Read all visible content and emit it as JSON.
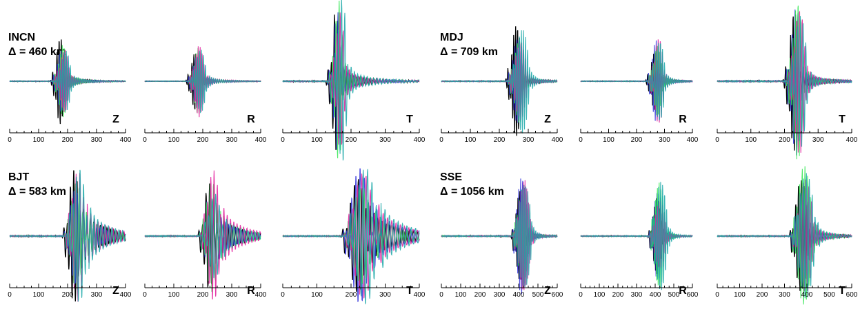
{
  "chart_data": {
    "type": "line",
    "x_unit_hidden": "s",
    "trace_colors": [
      "#000000",
      "#2a2ad8",
      "#30e650",
      "#e01a9a",
      "#19a7a7"
    ],
    "stations": [
      {
        "name": "INCN",
        "distance": "Δ = 460 km",
        "xlim": [
          0,
          400
        ],
        "xticks": [
          "0",
          "100",
          "200",
          "300",
          "400"
        ],
        "panels": [
          {
            "component": "Z",
            "arrival": 160,
            "duration": 45,
            "amp": 0.55,
            "coda": 0.08,
            "period": 7
          },
          {
            "component": "R",
            "arrival": 160,
            "duration": 45,
            "amp": 0.45,
            "coda": 0.08,
            "period": 7
          },
          {
            "component": "T",
            "arrival": 145,
            "duration": 35,
            "amp": 1.0,
            "coda": 0.1,
            "period": 9
          }
        ]
      },
      {
        "name": "MDJ",
        "distance": "Δ = 709 km",
        "xlim": [
          0,
          400
        ],
        "xticks": [
          "0",
          "100",
          "200",
          "300",
          "400"
        ],
        "panels": [
          {
            "component": "Z",
            "arrival": 240,
            "duration": 55,
            "amp": 0.7,
            "coda": 0.05,
            "period": 7
          },
          {
            "component": "R",
            "arrival": 250,
            "duration": 45,
            "amp": 0.55,
            "coda": 0.05,
            "period": 7
          },
          {
            "component": "T",
            "arrival": 215,
            "duration": 45,
            "amp": 1.0,
            "coda": 0.06,
            "period": 8
          }
        ]
      },
      {
        "name": "BJT",
        "distance": "Δ = 583 km",
        "xlim": [
          0,
          400
        ],
        "xticks": [
          "0",
          "100",
          "200",
          "300",
          "400"
        ],
        "panels": [
          {
            "component": "Z",
            "arrival": 200,
            "duration": 60,
            "amp": 1.0,
            "coda": 0.35,
            "period": 12
          },
          {
            "component": "R",
            "arrival": 200,
            "duration": 60,
            "amp": 0.9,
            "coda": 0.35,
            "period": 12
          },
          {
            "component": "T",
            "arrival": 190,
            "duration": 80,
            "amp": 1.0,
            "coda": 0.4,
            "period": 12
          }
        ]
      },
      {
        "name": "SSE",
        "distance": "Δ = 1056 km",
        "xlim": [
          0,
          600
        ],
        "xticks": [
          "0",
          "100",
          "200",
          "300",
          "400",
          "500",
          "600"
        ],
        "panels": [
          {
            "component": "Z",
            "arrival": 380,
            "duration": 80,
            "amp": 0.95,
            "coda": 0.05,
            "period": 10
          },
          {
            "component": "R",
            "arrival": 380,
            "duration": 80,
            "amp": 0.75,
            "coda": 0.05,
            "period": 10
          },
          {
            "component": "T",
            "arrival": 340,
            "duration": 90,
            "amp": 1.0,
            "coda": 0.1,
            "period": 12
          }
        ]
      }
    ]
  }
}
